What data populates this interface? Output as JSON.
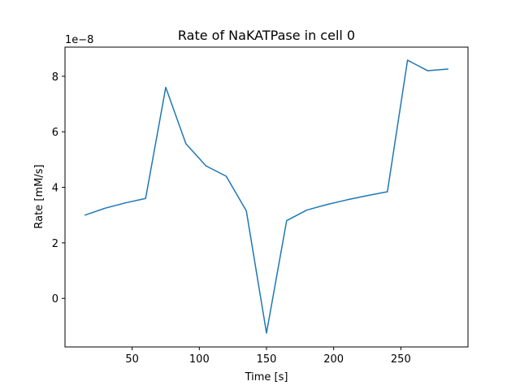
{
  "chart_data": {
    "type": "line",
    "title": "Rate of NaKATPase in cell 0",
    "xlabel": "Time [s]",
    "ylabel": "Rate [mM/s]",
    "y_offset_label": "1e−8",
    "xlim": [
      0,
      300
    ],
    "ylim": [
      -1.75,
      9.05
    ],
    "xticks": [
      50,
      100,
      150,
      200,
      250
    ],
    "yticks": [
      0,
      2,
      4,
      6,
      8
    ],
    "grid": false,
    "series": [
      {
        "color": "#1f77b4",
        "x": [
          15,
          30,
          45,
          60,
          75,
          90,
          105,
          120,
          135,
          150,
          165,
          180,
          195,
          210,
          225,
          240,
          255,
          270,
          285
        ],
        "y": [
          3.0,
          3.25,
          3.44,
          3.6,
          7.6,
          5.57,
          4.77,
          4.4,
          3.15,
          -1.25,
          2.8,
          3.18,
          3.38,
          3.55,
          3.7,
          3.84,
          8.58,
          8.2,
          8.26
        ]
      }
    ]
  }
}
